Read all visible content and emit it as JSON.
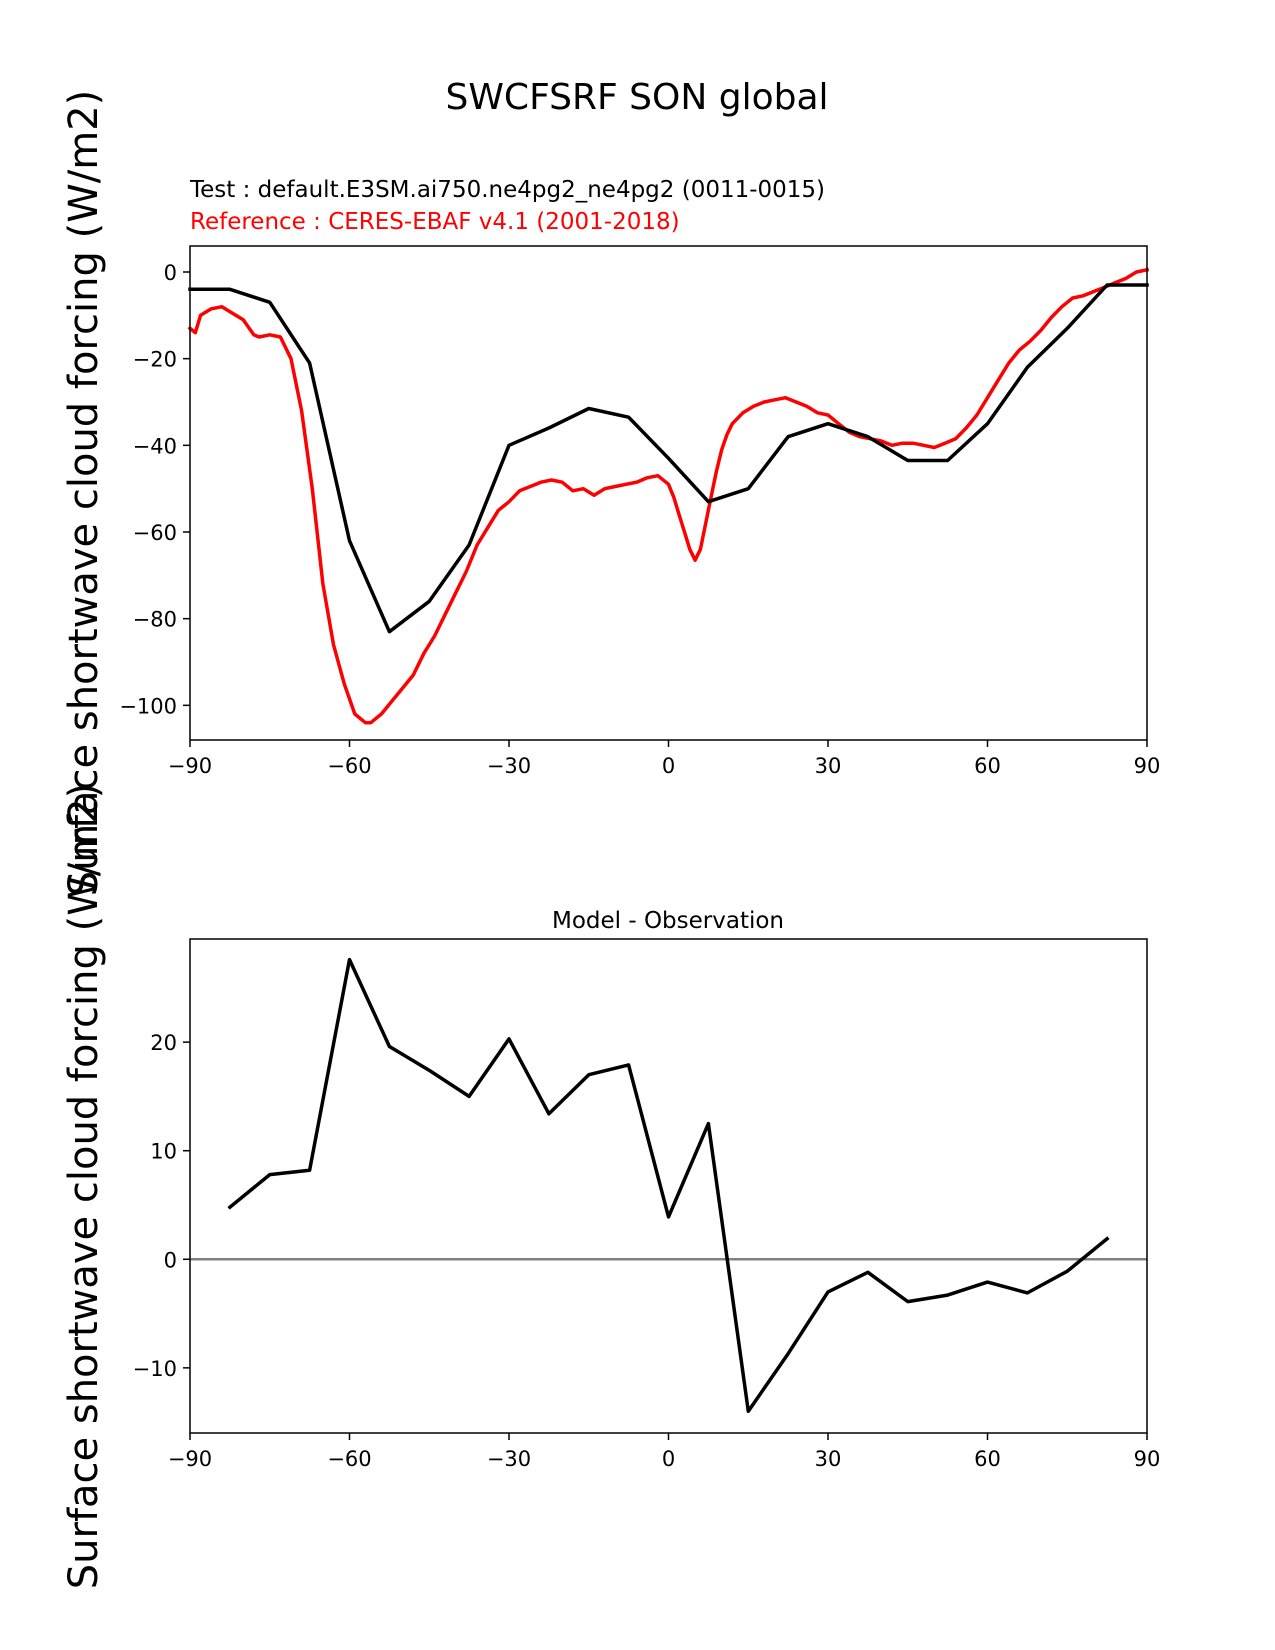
{
  "figure": {
    "title": "SWCFSRF SON global",
    "test_label": "Test : default.E3SM.ai750.ne4pg2_ne4pg2 (0011-0015)",
    "reference_label": "Reference : CERES-EBAF v4.1 (2001-2018)",
    "test_color": "#000000",
    "reference_color": "#ff0000",
    "zero_line_color": "#808080"
  },
  "chart_data": [
    {
      "type": "line",
      "title": "",
      "xlabel": "",
      "ylabel": "Surface shortwave cloud forcing (W/m2)",
      "xlim": [
        -90,
        90
      ],
      "ylim": [
        -108,
        6
      ],
      "xticks": [
        -90,
        -60,
        -30,
        0,
        30,
        60,
        90
      ],
      "yticks": [
        0,
        -20,
        -40,
        -60,
        -80,
        -100
      ],
      "grid": false,
      "series": [
        {
          "name": "Test",
          "color": "#000000",
          "x": [
            -90,
            -82.5,
            -75,
            -67.5,
            -60,
            -52.5,
            -45,
            -37.5,
            -30,
            -22.5,
            -15,
            -7.5,
            0,
            7.5,
            15,
            22.5,
            30,
            37.5,
            45,
            52.5,
            60,
            67.5,
            75,
            82.5,
            90
          ],
          "y": [
            -4,
            -4,
            -7,
            -21,
            -62,
            -83,
            -76,
            -63,
            -40,
            -36,
            -31.5,
            -33.5,
            -43,
            -53,
            -50,
            -38,
            -35,
            -38,
            -43.5,
            -43.5,
            -35,
            -22,
            -13,
            -3,
            -3
          ]
        },
        {
          "name": "Reference",
          "color": "#ff0000",
          "x": [
            -90,
            -89,
            -88,
            -86,
            -84,
            -82,
            -80,
            -78,
            -77,
            -75,
            -73,
            -71,
            -69,
            -67,
            -65,
            -63,
            -61,
            -59,
            -57,
            -56,
            -55,
            -54,
            -52,
            -50,
            -48,
            -46,
            -44,
            -42,
            -40,
            -38,
            -36,
            -34,
            -32,
            -30,
            -28,
            -26,
            -24,
            -22,
            -20,
            -18,
            -16,
            -14,
            -12,
            -10,
            -8,
            -6,
            -4,
            -2,
            0,
            1,
            2,
            3,
            4,
            5,
            6,
            7,
            8,
            9,
            10,
            11,
            12,
            14,
            16,
            18,
            20,
            22,
            24,
            26,
            28,
            30,
            32,
            34,
            36,
            38,
            40,
            42,
            44,
            46,
            48,
            50,
            52,
            54,
            56,
            58,
            60,
            62,
            64,
            66,
            68,
            70,
            72,
            74,
            76,
            78,
            80,
            82,
            84,
            86,
            88,
            90
          ],
          "y": [
            -13,
            -14,
            -10,
            -8.5,
            -8,
            -9.5,
            -11,
            -14.5,
            -15,
            -14.5,
            -15,
            -20,
            -32,
            -50,
            -72,
            -86,
            -95,
            -102,
            -104,
            -104,
            -103,
            -102,
            -99,
            -96,
            -93,
            -88,
            -84,
            -79,
            -74,
            -69,
            -63,
            -59,
            -55,
            -53,
            -50.5,
            -49.5,
            -48.5,
            -48,
            -48.5,
            -50.5,
            -50,
            -51.5,
            -50,
            -49.5,
            -49,
            -48.5,
            -47.5,
            -47,
            -49,
            -52,
            -56,
            -60,
            -64,
            -66.5,
            -64,
            -58,
            -52,
            -46,
            -41,
            -37.5,
            -35,
            -32.5,
            -31,
            -30,
            -29.5,
            -29,
            -30,
            -31,
            -32.5,
            -33,
            -35,
            -37,
            -38,
            -38.5,
            -39,
            -40,
            -39.5,
            -39.5,
            -40,
            -40.5,
            -39.5,
            -38.5,
            -36,
            -33,
            -29,
            -25,
            -21,
            -18,
            -16,
            -13.5,
            -10.5,
            -8,
            -6,
            -5.5,
            -4.5,
            -3.5,
            -2.5,
            -1.5,
            0,
            0.5
          ]
        }
      ]
    },
    {
      "type": "line",
      "title": "Model - Observation",
      "xlabel": "",
      "ylabel": "Surface shortwave cloud forcing (W/m2)",
      "xlim": [
        -90,
        90
      ],
      "ylim": [
        -16,
        29.5
      ],
      "xticks": [
        -90,
        -60,
        -30,
        0,
        30,
        60,
        90
      ],
      "yticks": [
        20,
        10,
        0,
        -10
      ],
      "grid": false,
      "zero_line": 0,
      "series": [
        {
          "name": "Model - Observation",
          "color": "#000000",
          "x": [
            -82.5,
            -75,
            -67.5,
            -60,
            -52.5,
            -45,
            -37.5,
            -30,
            -22.5,
            -15,
            -7.5,
            0,
            7.5,
            15,
            22.5,
            30,
            37.5,
            45,
            52.5,
            60,
            67.5,
            75,
            82.5
          ],
          "y": [
            4.8,
            7.8,
            8.2,
            27.6,
            19.6,
            17.4,
            15,
            20.3,
            13.4,
            17,
            17.9,
            3.9,
            12.5,
            -14,
            -8.7,
            -3,
            -1.2,
            -3.9,
            -3.3,
            -2.1,
            -3.1,
            -1.1,
            1.9
          ]
        }
      ]
    }
  ]
}
